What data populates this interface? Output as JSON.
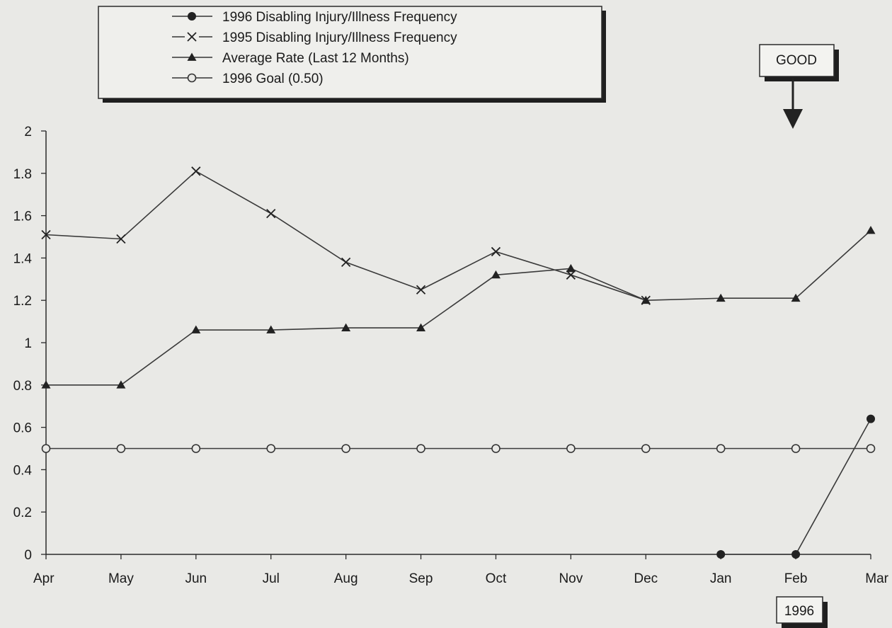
{
  "chart_data": {
    "type": "line",
    "categories": [
      "Apr",
      "May",
      "Jun",
      "Jul",
      "Aug",
      "Sep",
      "Oct",
      "Nov",
      "Dec",
      "Jan",
      "Feb",
      "Mar"
    ],
    "ylim": [
      0,
      2
    ],
    "yticks": [
      "0",
      "0.2",
      "0.4",
      "0.6",
      "0.8",
      "1",
      "1.2",
      "1.4",
      "1.6",
      "1.8",
      "2"
    ],
    "grid": false,
    "legend_position": "top-left",
    "series": [
      {
        "name": "1996 Disabling Injury/Illness Frequency",
        "marker": "filled-circle",
        "values": [
          null,
          null,
          null,
          null,
          null,
          null,
          null,
          null,
          null,
          0,
          0,
          0.64
        ]
      },
      {
        "name": "1995 Disabling Injury/Illness Frequency",
        "marker": "x",
        "values": [
          1.51,
          1.49,
          1.81,
          1.61,
          1.38,
          1.25,
          1.43,
          1.32,
          1.2,
          null,
          null,
          null
        ]
      },
      {
        "name": "Average Rate (Last 12 Months)",
        "marker": "triangle",
        "values": [
          0.8,
          0.8,
          1.06,
          1.06,
          1.07,
          1.07,
          1.32,
          1.35,
          1.2,
          1.21,
          1.21,
          1.53
        ]
      },
      {
        "name": "1996 Goal (0.50)",
        "marker": "open-circle",
        "values": [
          0.5,
          0.5,
          0.5,
          0.5,
          0.5,
          0.5,
          0.5,
          0.5,
          0.5,
          0.5,
          0.5,
          0.5
        ]
      }
    ],
    "annotations": [
      {
        "text": "GOOD",
        "kind": "down-arrow-box",
        "near": "Feb"
      },
      {
        "text": "1996",
        "kind": "box",
        "near": "Feb"
      }
    ]
  }
}
